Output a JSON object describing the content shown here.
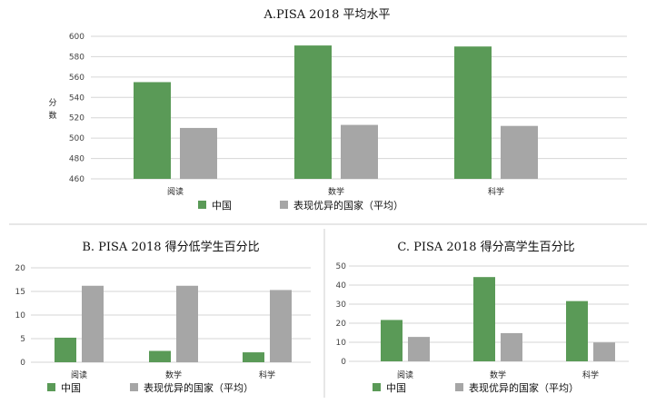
{
  "chart_data": [
    {
      "type": "bar",
      "title": "A.PISA 2018 平均水平",
      "ylabel": "分数",
      "categories": [
        "阅读",
        "数学",
        "科学"
      ],
      "ylim": [
        460,
        600
      ],
      "yticks": [
        460,
        480,
        500,
        520,
        540,
        560,
        580,
        600
      ],
      "series": [
        {
          "name": "中国",
          "color": "#5a9a57",
          "values": [
            555,
            591,
            590
          ]
        },
        {
          "name": "表现优异的国家（平均）",
          "color": "#a6a6a6",
          "values": [
            510,
            513,
            512
          ]
        }
      ],
      "grid": true,
      "legend": "bottom"
    },
    {
      "type": "bar",
      "title": "B. PISA 2018 得分低学生百分比",
      "categories": [
        "阅读",
        "数学",
        "科学"
      ],
      "ylim": [
        0,
        20
      ],
      "yticks": [
        0,
        5,
        10,
        15,
        20
      ],
      "series": [
        {
          "name": "中国",
          "color": "#5a9a57",
          "values": [
            5.2,
            2.4,
            2.1
          ]
        },
        {
          "name": "表现优异的国家（平均）",
          "color": "#a6a6a6",
          "values": [
            16.2,
            16.2,
            15.3
          ]
        }
      ],
      "grid": true,
      "legend": "bottom"
    },
    {
      "type": "bar",
      "title": "C. PISA 2018 得分高学生百分比",
      "categories": [
        "阅读",
        "数学",
        "科学"
      ],
      "ylim": [
        0,
        50
      ],
      "yticks": [
        0,
        10,
        20,
        30,
        40,
        50
      ],
      "series": [
        {
          "name": "中国",
          "color": "#5a9a57",
          "values": [
            21.7,
            44.2,
            31.6
          ]
        },
        {
          "name": "表现优异的国家（平均）",
          "color": "#a6a6a6",
          "values": [
            12.8,
            14.8,
            9.9
          ]
        }
      ],
      "grid": true,
      "legend": "bottom"
    }
  ]
}
